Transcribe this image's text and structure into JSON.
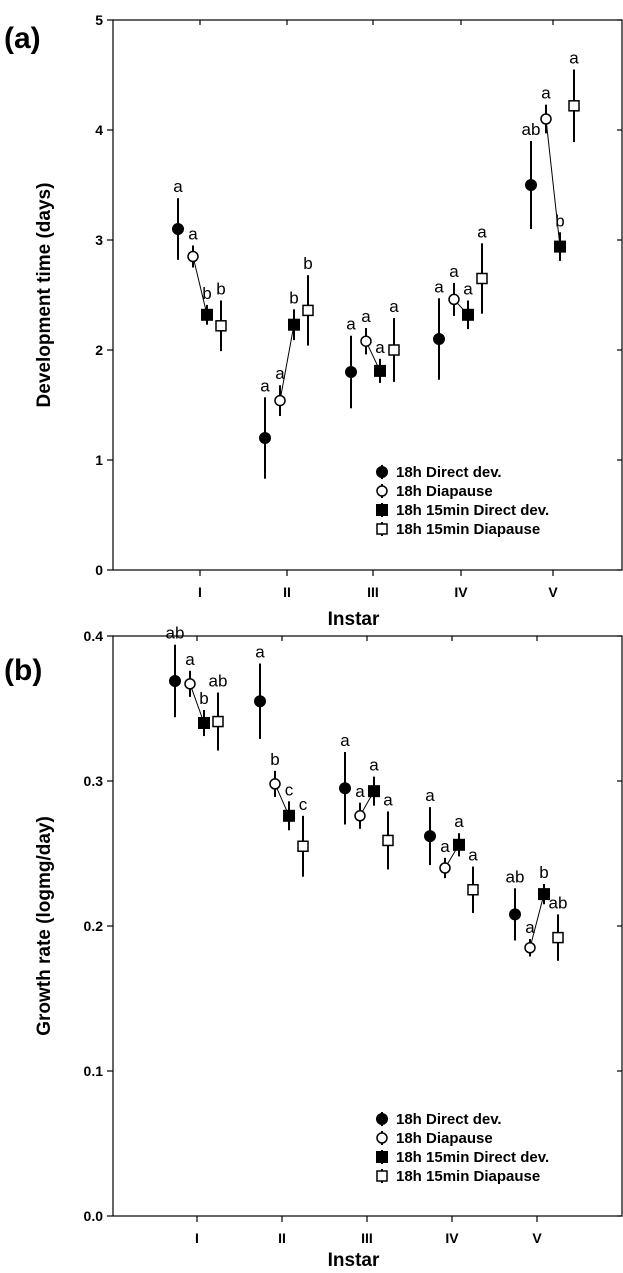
{
  "chart_data": [
    {
      "type": "scatter",
      "panel_label": "(a)",
      "xlabel": "Instar",
      "ylabel": "Development time (days)",
      "categories": [
        "I",
        "II",
        "III",
        "IV",
        "V"
      ],
      "ylim": [
        0,
        5
      ],
      "yticks": [
        "0",
        "1",
        "2",
        "3",
        "4",
        "5"
      ],
      "grid": false,
      "legend_position": "bottom-right",
      "series": [
        {
          "name": "18h Direct dev.",
          "marker": "filled-circle",
          "connected_to_next": false,
          "values": [
            3.1,
            1.2,
            1.8,
            2.1,
            3.5
          ],
          "err": [
            0.28,
            0.37,
            0.33,
            0.37,
            0.4
          ],
          "letters": [
            "a",
            "a",
            "a",
            "a",
            "ab"
          ]
        },
        {
          "name": "18h Diapause",
          "marker": "open-circle",
          "connected_to_next": true,
          "values": [
            2.85,
            1.54,
            2.08,
            2.46,
            4.1
          ],
          "err": [
            0.1,
            0.14,
            0.12,
            0.15,
            0.13
          ],
          "letters": [
            "a",
            "a",
            "a",
            "a",
            "a"
          ]
        },
        {
          "name": "18h 15min Direct dev.",
          "marker": "filled-square",
          "connected_to_next": false,
          "values": [
            2.32,
            2.23,
            1.81,
            2.32,
            2.94
          ],
          "err": [
            0.09,
            0.14,
            0.11,
            0.13,
            0.13
          ],
          "letters": [
            "b",
            "b",
            "a",
            "a",
            "b"
          ]
        },
        {
          "name": "18h 15min Diapause",
          "marker": "open-square",
          "connected_to_next": false,
          "values": [
            2.22,
            2.36,
            2.0,
            2.65,
            4.22
          ],
          "err": [
            0.23,
            0.32,
            0.29,
            0.32,
            0.33
          ],
          "letters": [
            "b",
            "b",
            "a",
            "a",
            "a"
          ]
        }
      ]
    },
    {
      "type": "scatter",
      "panel_label": "(b)",
      "xlabel": "Instar",
      "ylabel": "Growth rate (logmg/day)",
      "categories": [
        "I",
        "II",
        "III",
        "IV",
        "V"
      ],
      "ylim": [
        0,
        0.4
      ],
      "yticks": [
        "0.0",
        "0.1",
        "0.2",
        "0.3",
        "0.4"
      ],
      "grid": false,
      "legend_position": "bottom-right",
      "series": [
        {
          "name": "18h Direct dev.",
          "marker": "filled-circle",
          "connected_to_next": false,
          "values": [
            0.369,
            0.355,
            0.295,
            0.262,
            0.208
          ],
          "err": [
            0.025,
            0.026,
            0.025,
            0.02,
            0.018
          ],
          "letters": [
            "ab",
            "a",
            "a",
            "a",
            "ab"
          ]
        },
        {
          "name": "18h Diapause",
          "marker": "open-circle",
          "connected_to_next": true,
          "values": [
            0.367,
            0.298,
            0.276,
            0.24,
            0.185
          ],
          "err": [
            0.009,
            0.009,
            0.009,
            0.007,
            0.006
          ],
          "letters": [
            "a",
            "b",
            "a",
            "a",
            "a"
          ]
        },
        {
          "name": "18h 15min Direct dev.",
          "marker": "filled-square",
          "connected_to_next": false,
          "values": [
            0.34,
            0.276,
            0.293,
            0.256,
            0.222
          ],
          "err": [
            0.009,
            0.01,
            0.01,
            0.008,
            0.007
          ],
          "letters": [
            "b",
            "c",
            "a",
            "a",
            "b"
          ]
        },
        {
          "name": "18h 15min Diapause",
          "marker": "open-square",
          "connected_to_next": false,
          "values": [
            0.341,
            0.255,
            0.259,
            0.225,
            0.192
          ],
          "err": [
            0.02,
            0.021,
            0.02,
            0.016,
            0.016
          ],
          "letters": [
            "ab",
            "c",
            "a",
            "a",
            "ab"
          ]
        }
      ]
    }
  ]
}
